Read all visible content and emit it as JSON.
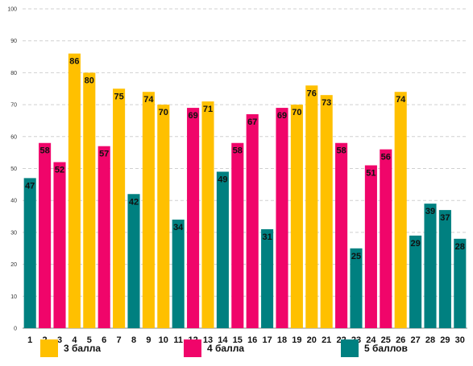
{
  "chart_data": {
    "type": "bar",
    "title": "",
    "xlabel": "",
    "ylabel": "",
    "ylim": [
      0,
      100
    ],
    "y_ticks": [
      0,
      10,
      20,
      30,
      40,
      50,
      60,
      70,
      80,
      90,
      100
    ],
    "grid": true,
    "legend_position": "bottom",
    "categories": [
      "1",
      "2",
      "3",
      "4",
      "5",
      "6",
      "7",
      "8",
      "9",
      "10",
      "11",
      "12",
      "13",
      "14",
      "15",
      "16",
      "17",
      "18",
      "19",
      "20",
      "21",
      "22",
      "23",
      "24",
      "25",
      "26",
      "27",
      "28",
      "29",
      "30"
    ],
    "values": [
      47,
      58,
      52,
      86,
      80,
      57,
      75,
      42,
      74,
      70,
      34,
      69,
      71,
      49,
      58,
      67,
      31,
      69,
      70,
      76,
      73,
      58,
      25,
      51,
      56,
      74,
      29,
      39,
      37,
      28
    ],
    "groups": [
      5,
      4,
      4,
      3,
      3,
      4,
      3,
      5,
      3,
      3,
      5,
      4,
      3,
      5,
      4,
      4,
      5,
      4,
      3,
      3,
      3,
      4,
      5,
      4,
      4,
      3,
      5,
      5,
      5,
      5
    ],
    "series": [
      {
        "key": 3,
        "name": "3 балла",
        "color": "#FFC000"
      },
      {
        "key": 4,
        "name": "4 балла",
        "color": "#F0056A"
      },
      {
        "key": 5,
        "name": "5 баллов",
        "color": "#008080"
      }
    ]
  }
}
